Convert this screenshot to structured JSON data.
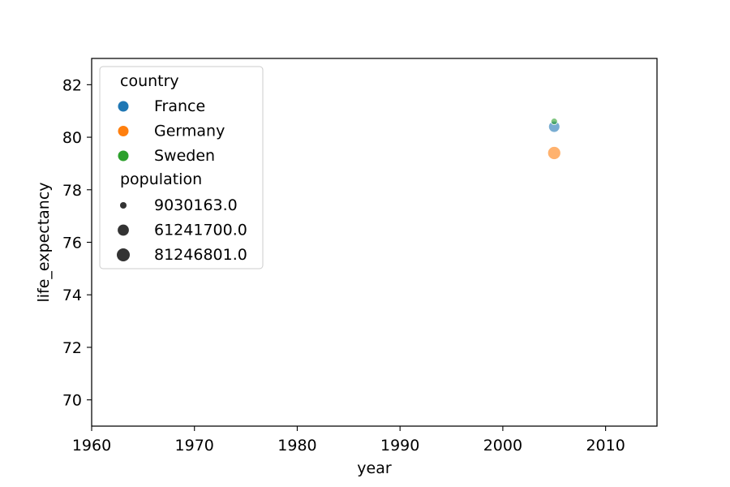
{
  "chart_data": {
    "type": "scatter",
    "xlabel": "year",
    "ylabel": "life_expectancy",
    "xlim": [
      1960,
      2015
    ],
    "ylim": [
      69,
      83
    ],
    "x_ticks": [
      1960,
      1970,
      1980,
      1990,
      2000,
      2010
    ],
    "y_ticks": [
      70,
      72,
      74,
      76,
      78,
      80,
      82
    ],
    "x_tick_labels": [
      "1960",
      "1970",
      "1980",
      "1990",
      "2000",
      "2010"
    ],
    "y_tick_labels": [
      "70",
      "72",
      "74",
      "76",
      "78",
      "80",
      "82"
    ],
    "grid": false,
    "legend_placement": "top-left",
    "hue": {
      "title": "country",
      "entries": [
        {
          "label": "France",
          "color": "#1f77b4"
        },
        {
          "label": "Germany",
          "color": "#ff7f0e"
        },
        {
          "label": "Sweden",
          "color": "#2ca02c"
        }
      ]
    },
    "size": {
      "title": "population",
      "entries": [
        {
          "label": "9030163.0",
          "value": 9030163
        },
        {
          "label": "61241700.0",
          "value": 61241700
        },
        {
          "label": "81246801.0",
          "value": 81246801
        }
      ]
    },
    "points": [
      {
        "country": "France",
        "x": 2005,
        "y": 80.4,
        "population": 61241700
      },
      {
        "country": "Germany",
        "x": 2005,
        "y": 79.4,
        "population": 81246801
      },
      {
        "country": "Sweden",
        "x": 2005,
        "y": 80.6,
        "population": 9030163
      }
    ]
  }
}
